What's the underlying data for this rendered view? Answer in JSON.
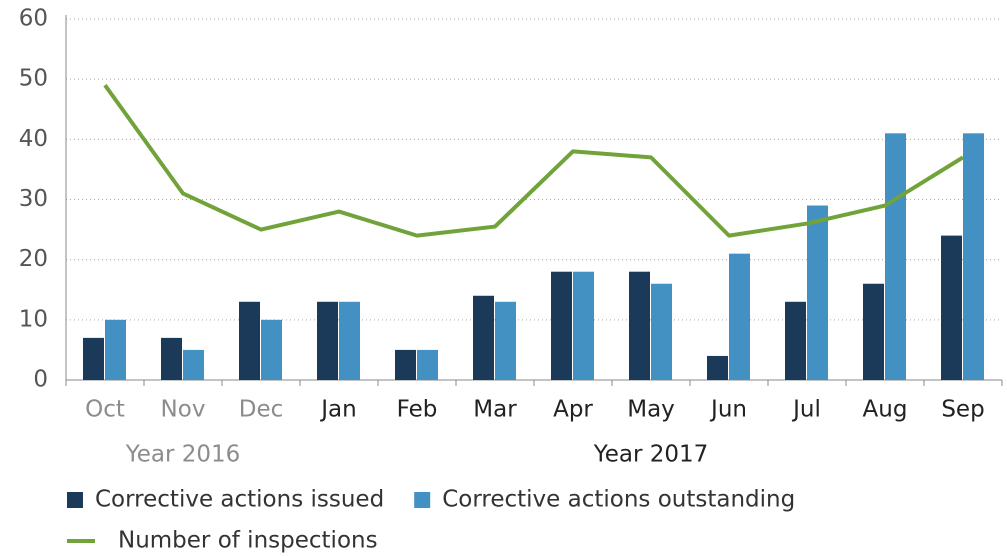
{
  "chart_data": {
    "type": "bar",
    "categories": [
      "Oct",
      "Nov",
      "Dec",
      "Jan",
      "Feb",
      "Mar",
      "Apr",
      "May",
      "Jun",
      "Jul",
      "Aug",
      "Sep"
    ],
    "x_groups": [
      {
        "label": "Year 2016",
        "from": 0,
        "to": 2,
        "color": "#8c8c8c"
      },
      {
        "label": "Year 2017",
        "from": 3,
        "to": 11,
        "color": "#222222"
      }
    ],
    "series": [
      {
        "name": "Corrective actions issued",
        "type": "bar",
        "color": "#1b3a5a",
        "values": [
          7,
          7,
          13,
          13,
          5,
          14,
          18,
          18,
          4,
          13,
          16,
          24
        ]
      },
      {
        "name": "Corrective actions outstanding",
        "type": "bar",
        "color": "#4391c3",
        "values": [
          10,
          5,
          10,
          13,
          5,
          13,
          18,
          16,
          21,
          29,
          41,
          41
        ]
      },
      {
        "name": "Number of inspections",
        "type": "line",
        "color": "#72a33a",
        "values": [
          49,
          31,
          25,
          28,
          24,
          25.5,
          38,
          37,
          24,
          26,
          29,
          37
        ]
      }
    ],
    "ylim": [
      0,
      60
    ],
    "yticks": [
      0,
      10,
      20,
      30,
      40,
      50,
      60
    ],
    "grid": true,
    "legend": "bottom"
  }
}
